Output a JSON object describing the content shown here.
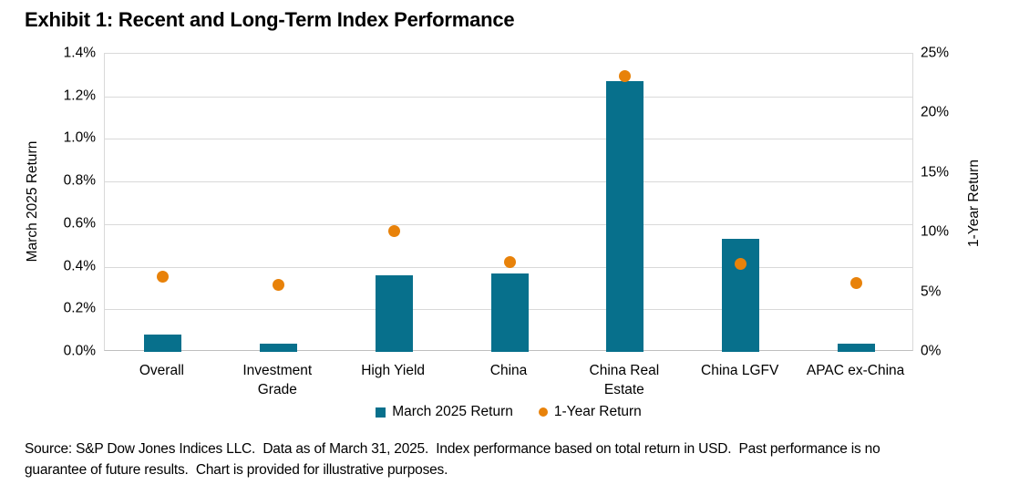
{
  "title": "Exhibit 1: Recent and Long-Term Index Performance",
  "colors": {
    "bar": "#07708C",
    "dot": "#E8820A",
    "grid": "#D9D9D9",
    "axis_line": "#BFBFBF",
    "text": "#000000"
  },
  "chart_data": {
    "type": "bar",
    "subtype": "dual-axis combo: bars (left axis) + scatter dots (right axis)",
    "categories": [
      "Overall",
      "Investment Grade",
      "High Yield",
      "China",
      "China Real Estate",
      "China LGFV",
      "APAC ex-China"
    ],
    "series": [
      {
        "name": "March 2025 Return",
        "type": "bar",
        "axis": "left",
        "unit": "%",
        "values": [
          0.08,
          0.04,
          0.36,
          0.37,
          1.27,
          0.53,
          0.04
        ]
      },
      {
        "name": "1-Year Return",
        "type": "scatter",
        "axis": "right",
        "unit": "%",
        "values": [
          6.3,
          5.6,
          10.1,
          7.5,
          23.1,
          7.4,
          5.8
        ]
      }
    ],
    "left_axis": {
      "label": "March 2025 Return",
      "min": 0,
      "max": 1.4,
      "step": 0.2,
      "ticks": [
        "1.4%",
        "1.2%",
        "1.0%",
        "0.8%",
        "0.6%",
        "0.4%",
        "0.2%",
        "0.0%"
      ]
    },
    "right_axis": {
      "label": "1-Year Return",
      "min": 0,
      "max": 25,
      "step": 5,
      "ticks": [
        "25%",
        "20%",
        "15%",
        "10%",
        "5%",
        "0%"
      ]
    },
    "grid": true,
    "legend_position": "bottom"
  },
  "source_note": {
    "full_text": "Source: S&P Dow Jones Indices LLC.  Data as of March 31, 2025.  Index performance based on total return in USD.  Past performance is no guarantee of future results.  Chart is provided for illustrative purposes.",
    "line1": "Source: S&P Dow Jones Indices LLC.  Data as of March 31, 2025.  Index performance based on total return in USD.  Past performance is no",
    "line2": "guarantee of future results.  Chart is provided for illustrative purposes."
  }
}
